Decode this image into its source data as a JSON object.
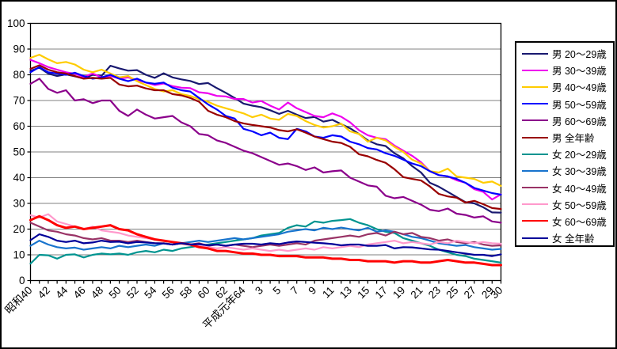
{
  "window": {
    "background": "#FFFFFF",
    "border_color": "#000000",
    "grid_color": "#808080",
    "axis_color": "#000000",
    "text_color": "#000000"
  },
  "legend": {
    "position": "right",
    "border_color": "#000000"
  },
  "chart_data": {
    "type": "line",
    "title": "",
    "xlabel": "",
    "ylabel": "",
    "grid": true,
    "legend_position": "right",
    "x_axis": {
      "n_points": 54,
      "tick_labels": [
        "昭和40",
        "42",
        "44",
        "46",
        "48",
        "50",
        "52",
        "54",
        "56",
        "58",
        "60",
        "62",
        "平成元年64",
        "3",
        "5",
        "7",
        "9",
        "11",
        "13",
        "15",
        "17",
        "19",
        "21",
        "23",
        "25",
        "27",
        "29",
        "30"
      ],
      "tick_label_indices": [
        0,
        2,
        4,
        6,
        8,
        10,
        12,
        14,
        16,
        18,
        20,
        22,
        24,
        26,
        28,
        30,
        32,
        34,
        36,
        38,
        40,
        42,
        44,
        46,
        48,
        50,
        52,
        53
      ],
      "label_rotation_deg": -45
    },
    "y_axis": {
      "min": 0,
      "max": 100,
      "step": 10,
      "tick_labels": [
        "0",
        "10",
        "20",
        "30",
        "40",
        "50",
        "60",
        "70",
        "80",
        "90",
        "100"
      ]
    },
    "series": [
      {
        "name": "男 20～29歳",
        "color": "#191970",
        "line_width": 2.2,
        "values": [
          81.5,
          82.8,
          80.5,
          79.5,
          80.2,
          79.4,
          78.6,
          80.0,
          79.6,
          83.5,
          82.5,
          81.6,
          81.8,
          80.0,
          78.8,
          80.6,
          79.0,
          78.2,
          77.6,
          76.4,
          76.8,
          74.8,
          73.0,
          71.0,
          68.8,
          68.0,
          67.4,
          66.2,
          64.8,
          66.0,
          64.5,
          63.2,
          63.6,
          61.8,
          62.5,
          60.8,
          59.2,
          57.0,
          54.5,
          53.0,
          52.3,
          49.5,
          47.5,
          44.5,
          42.0,
          38.0,
          36.5,
          34.5,
          32.5,
          30.5,
          30.0,
          28.5,
          26.5,
          26.4
        ]
      },
      {
        "name": "男 30～39歳",
        "color": "#EE00EE",
        "line_width": 2.2,
        "values": [
          85.8,
          84.5,
          83.0,
          82.0,
          81.0,
          80.4,
          79.2,
          80.5,
          79.0,
          79.6,
          78.5,
          79.0,
          78.0,
          77.0,
          76.0,
          76.6,
          75.6,
          75.0,
          74.8,
          73.2,
          72.8,
          71.8,
          71.6,
          70.6,
          70.6,
          69.2,
          69.8,
          68.0,
          66.5,
          69.2,
          67.0,
          65.5,
          64.0,
          63.5,
          65.0,
          63.7,
          61.5,
          58.5,
          56.5,
          55.5,
          55.0,
          52.5,
          50.5,
          48.5,
          46.0,
          42.5,
          41.0,
          40.5,
          39.0,
          38.0,
          35.5,
          34.5,
          31.5,
          33.5
        ]
      },
      {
        "name": "男 40～49歳",
        "color": "#FFCC00",
        "line_width": 2.2,
        "values": [
          86.6,
          87.8,
          86.0,
          84.5,
          85.0,
          84.0,
          82.0,
          81.0,
          82.0,
          80.5,
          79.0,
          79.5,
          77.5,
          76.0,
          74.5,
          73.5,
          74.0,
          72.5,
          71.8,
          70.5,
          69.5,
          68.0,
          67.0,
          66.0,
          65.0,
          63.5,
          64.5,
          63.0,
          62.5,
          64.8,
          64.0,
          62.0,
          60.5,
          59.5,
          60.0,
          61.0,
          58.0,
          57.0,
          54.0,
          55.5,
          54.5,
          52.0,
          50.0,
          47.0,
          45.5,
          42.5,
          42.0,
          43.5,
          40.5,
          40.0,
          39.5,
          38.0,
          38.5,
          36.8
        ]
      },
      {
        "name": "男 50～59歳",
        "color": "#0000FF",
        "line_width": 2.2,
        "values": [
          81.0,
          83.0,
          81.0,
          80.5,
          80.0,
          80.8,
          79.5,
          78.5,
          79.0,
          80.0,
          78.5,
          77.5,
          78.5,
          77.0,
          76.5,
          77.0,
          75.0,
          74.0,
          73.5,
          71.0,
          68.5,
          66.5,
          64.0,
          63.0,
          59.0,
          58.0,
          56.5,
          57.5,
          55.5,
          55.0,
          59.0,
          58.0,
          56.0,
          55.5,
          56.5,
          56.0,
          54.0,
          53.0,
          51.5,
          51.0,
          49.5,
          48.5,
          47.0,
          45.5,
          44.5,
          42.5,
          41.0,
          40.5,
          39.5,
          38.0,
          36.0,
          35.0,
          34.0,
          33.4
        ]
      },
      {
        "name": "男 60～69歳",
        "color": "#8B008B",
        "line_width": 2.2,
        "values": [
          76.5,
          78.5,
          74.5,
          73.0,
          74.0,
          70.0,
          70.5,
          69.0,
          70.0,
          70.0,
          66.0,
          64.0,
          66.5,
          64.5,
          63.0,
          63.5,
          64.0,
          61.5,
          60.0,
          57.0,
          56.5,
          54.5,
          53.5,
          52.0,
          50.5,
          49.5,
          48.0,
          46.5,
          45.0,
          45.5,
          44.5,
          43.0,
          44.0,
          42.0,
          42.5,
          42.8,
          40.0,
          38.5,
          37.0,
          36.5,
          33.0,
          32.0,
          32.5,
          31.0,
          29.5,
          27.5,
          27.0,
          28.0,
          26.0,
          25.5,
          24.5,
          25.0,
          23.0,
          22.5
        ]
      },
      {
        "name": "男 全年齢",
        "color": "#990000",
        "line_width": 2.2,
        "values": [
          82.3,
          83.7,
          82.0,
          81.0,
          80.5,
          79.5,
          78.5,
          78.8,
          78.5,
          78.8,
          76.2,
          75.5,
          75.8,
          74.7,
          74.0,
          74.0,
          72.5,
          72.0,
          71.0,
          69.5,
          66.0,
          64.5,
          63.5,
          62.0,
          61.1,
          60.5,
          60.0,
          59.5,
          58.5,
          58.0,
          58.8,
          57.5,
          56.0,
          55.0,
          54.0,
          53.5,
          52.0,
          49.1,
          48.3,
          46.9,
          45.8,
          43.3,
          40.2,
          39.5,
          38.9,
          36.6,
          33.7,
          32.7,
          32.2,
          30.3,
          31.0,
          29.7,
          28.2,
          27.8
        ]
      },
      {
        "name": "女 20～29歳",
        "color": "#009490",
        "line_width": 2.2,
        "values": [
          6.6,
          10.0,
          9.8,
          8.5,
          10.0,
          10.2,
          9.0,
          10.0,
          10.5,
          10.2,
          10.5,
          10.0,
          11.0,
          11.5,
          11.0,
          12.0,
          11.5,
          12.5,
          13.0,
          13.5,
          14.0,
          14.5,
          15.0,
          15.5,
          16.0,
          16.5,
          17.5,
          18.0,
          18.5,
          20.5,
          21.5,
          21.0,
          23.0,
          22.5,
          23.2,
          23.5,
          23.9,
          22.5,
          21.5,
          20.0,
          19.0,
          18.5,
          16.5,
          15.5,
          14.5,
          13.5,
          12.0,
          11.0,
          10.0,
          9.5,
          8.5,
          8.0,
          7.5,
          7.0
        ]
      },
      {
        "name": "女 30～39歳",
        "color": "#1874CD",
        "line_width": 2.2,
        "values": [
          13.5,
          15.5,
          14.0,
          13.0,
          12.5,
          12.8,
          12.0,
          12.5,
          13.0,
          12.5,
          13.5,
          13.0,
          13.5,
          14.0,
          13.5,
          14.5,
          14.0,
          14.5,
          15.0,
          15.5,
          15.0,
          15.5,
          16.0,
          16.5,
          16.0,
          16.5,
          17.0,
          17.5,
          18.0,
          19.0,
          19.5,
          20.0,
          19.5,
          20.5,
          20.0,
          20.6,
          20.0,
          19.5,
          20.5,
          19.0,
          19.5,
          19.0,
          18.0,
          17.0,
          16.5,
          15.5,
          14.5,
          14.0,
          13.5,
          13.8,
          13.0,
          12.5,
          12.0,
          12.3
        ]
      },
      {
        "name": "女 40～49歳",
        "color": "#993366",
        "line_width": 2.2,
        "values": [
          22.5,
          21.0,
          19.5,
          19.0,
          18.0,
          17.5,
          16.5,
          16.0,
          16.5,
          15.5,
          15.5,
          15.0,
          15.5,
          15.0,
          14.5,
          14.5,
          14.0,
          14.5,
          14.0,
          14.5,
          13.5,
          14.0,
          13.5,
          14.0,
          13.5,
          13.0,
          13.5,
          14.0,
          13.5,
          14.0,
          14.5,
          14.0,
          15.5,
          16.0,
          16.5,
          17.0,
          17.5,
          17.0,
          18.0,
          18.5,
          17.5,
          19.0,
          18.0,
          18.5,
          17.0,
          16.5,
          15.5,
          16.0,
          15.0,
          14.5,
          15.0,
          14.0,
          13.5,
          13.7
        ]
      },
      {
        "name": "女 50～59歳",
        "color": "#FF99CC",
        "line_width": 2.2,
        "values": [
          25.4,
          24.5,
          25.8,
          23.0,
          22.0,
          21.0,
          20.0,
          21.0,
          19.5,
          19.0,
          18.5,
          17.5,
          17.0,
          16.5,
          16.0,
          15.5,
          15.0,
          14.5,
          14.0,
          13.5,
          13.0,
          12.5,
          13.0,
          12.5,
          12.0,
          12.5,
          12.0,
          11.5,
          12.0,
          11.5,
          12.0,
          12.5,
          12.0,
          13.0,
          12.5,
          13.0,
          13.5,
          13.0,
          14.0,
          14.5,
          15.0,
          15.5,
          14.5,
          15.0,
          14.5,
          14.0,
          15.0,
          14.5,
          15.5,
          15.0,
          14.5,
          15.0,
          14.5,
          14.3
        ]
      },
      {
        "name": "女 60～69歳",
        "color": "#FF0000",
        "line_width": 3.0,
        "values": [
          23.5,
          25.0,
          23.5,
          21.5,
          20.5,
          21.0,
          20.0,
          20.5,
          21.0,
          21.5,
          20.0,
          19.5,
          18.0,
          17.0,
          16.0,
          15.5,
          15.0,
          14.5,
          14.0,
          13.0,
          12.5,
          11.5,
          11.5,
          11.0,
          10.5,
          10.5,
          10.0,
          10.0,
          9.5,
          9.5,
          9.5,
          9.0,
          9.0,
          9.0,
          8.5,
          8.5,
          8.0,
          8.0,
          7.5,
          7.5,
          7.5,
          7.0,
          7.5,
          7.5,
          7.0,
          7.0,
          7.5,
          8.0,
          7.5,
          7.0,
          7.0,
          6.5,
          6.0,
          6.0
        ]
      },
      {
        "name": "女 全年齢",
        "color": "#000099",
        "line_width": 2.2,
        "values": [
          15.7,
          18.0,
          17.0,
          15.5,
          15.0,
          15.5,
          14.5,
          14.8,
          15.5,
          15.0,
          15.1,
          14.5,
          15.0,
          14.8,
          14.5,
          14.4,
          14.0,
          14.5,
          14.0,
          14.2,
          13.7,
          14.0,
          13.5,
          14.0,
          14.3,
          14.3,
          14.0,
          14.5,
          14.2,
          14.8,
          15.2,
          15.0,
          14.7,
          14.5,
          14.2,
          13.7,
          14.0,
          14.0,
          13.5,
          13.5,
          13.8,
          12.5,
          13.0,
          12.9,
          12.5,
          12.1,
          12.0,
          11.5,
          11.0,
          10.5,
          10.0,
          10.0,
          9.5,
          10.2
        ]
      }
    ]
  }
}
